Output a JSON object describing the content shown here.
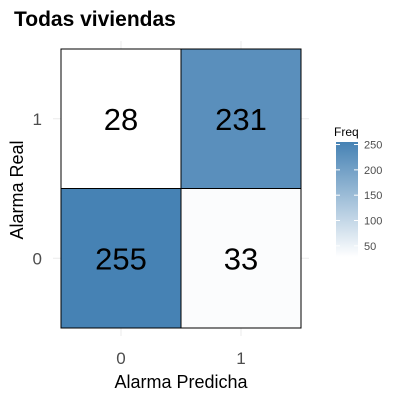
{
  "chart_data": {
    "type": "heatmap",
    "title": "Todas viviendas",
    "xlabel": "Alarma Predicha",
    "ylabel": "Alarma Real",
    "x_categories": [
      "0",
      "1"
    ],
    "y_categories": [
      "0",
      "1"
    ],
    "cells": [
      {
        "x": "0",
        "y": "1",
        "value": 28
      },
      {
        "x": "1",
        "y": "1",
        "value": 231
      },
      {
        "x": "0",
        "y": "0",
        "value": 255
      },
      {
        "x": "1",
        "y": "0",
        "value": 33
      }
    ],
    "legend": {
      "title": "Freq",
      "ticks": [
        250,
        200,
        150,
        100,
        50
      ],
      "range": [
        28,
        255
      ],
      "placement": "right"
    },
    "colors": {
      "low": "#ffffff",
      "high": "#4682b4",
      "border": "#000000",
      "grid": "#ebebeb",
      "text": "#000000",
      "axis_text": "#4d4d4d"
    },
    "grid": true
  }
}
